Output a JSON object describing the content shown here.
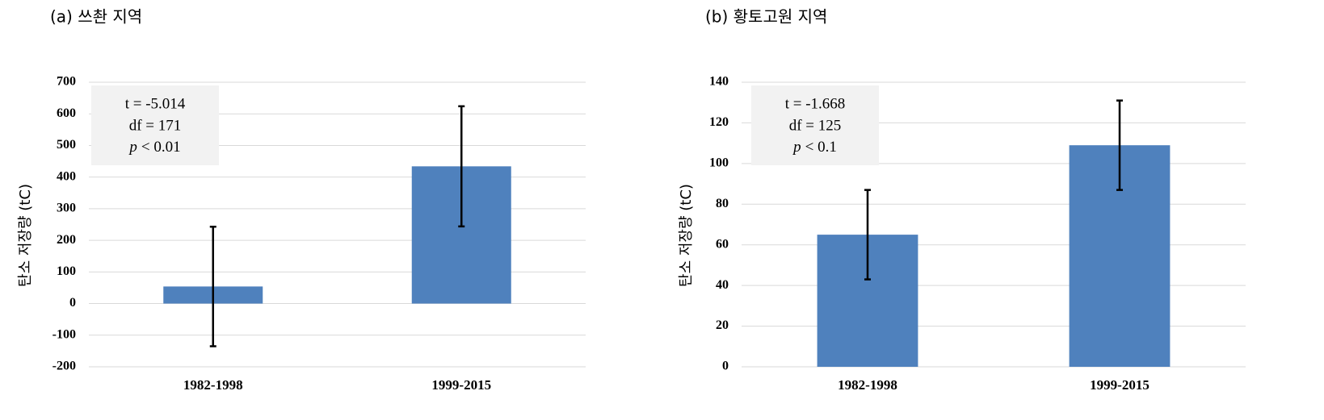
{
  "chart_data": [
    {
      "type": "bar",
      "title": "(a) 쓰촨 지역",
      "y_label": "탄소 저장량 (tC)",
      "categories": [
        "1982-1998",
        "1999-2015"
      ],
      "values": [
        54,
        434
      ],
      "errors": [
        189,
        190
      ],
      "color": "#4f81bd",
      "error_color": "#000000",
      "ylim": [
        -200,
        700
      ],
      "yticks": [
        -200,
        -100,
        0,
        100,
        200,
        300,
        400,
        500,
        600,
        700
      ],
      "grid": true,
      "annotation": [
        "t = -5.014",
        "df = 171",
        [
          "p",
          "< 0.01"
        ]
      ]
    },
    {
      "type": "bar",
      "title": "(b) 황토고원 지역",
      "y_label": "탄소 저장량 (tC)",
      "categories": [
        "1982-1998",
        "1999-2015"
      ],
      "values": [
        65,
        109
      ],
      "errors": [
        22,
        22
      ],
      "color": "#4f81bd",
      "error_color": "#000000",
      "ylim": [
        0,
        140
      ],
      "yticks": [
        0,
        20,
        40,
        60,
        80,
        100,
        120,
        140
      ],
      "grid": true,
      "annotation": [
        "t = -1.668",
        "df = 125",
        [
          "p",
          "< 0.1"
        ]
      ]
    }
  ]
}
